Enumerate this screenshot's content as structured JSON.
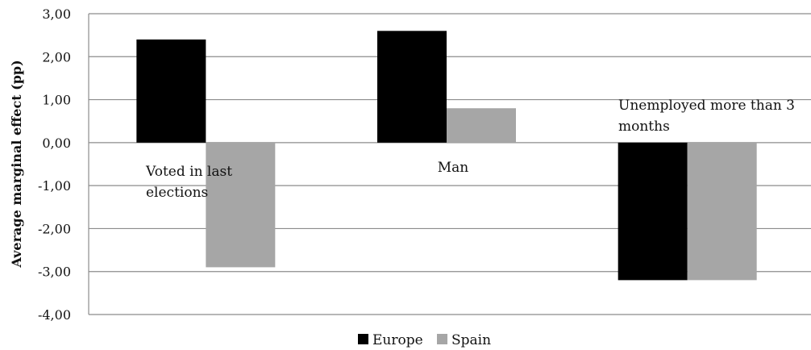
{
  "chart_data": {
    "type": "bar",
    "title": "",
    "xlabel": "",
    "ylabel": "Average marginal effect (pp)",
    "ylim": [
      -4,
      3
    ],
    "yticks": [
      "3,00",
      "2,00",
      "1,00",
      "0,00",
      "-1,00",
      "-2,00",
      "-3,00",
      "-4,00"
    ],
    "categories": [
      "Voted in last elections",
      "Man",
      "Unemployed more than 3 months"
    ],
    "category_label_lines": [
      [
        "Voted in last",
        "elections"
      ],
      [
        "Man"
      ],
      [
        "Unemployed more than 3",
        "months"
      ]
    ],
    "series": [
      {
        "name": "Europe",
        "values": [
          2.4,
          2.6,
          -3.2
        ],
        "color": "#000000"
      },
      {
        "name": "Spain",
        "values": [
          -2.9,
          0.8,
          -3.2
        ],
        "color": "#a6a6a6"
      }
    ],
    "grid": true,
    "gridline_color": "#8c8c8c",
    "legend_position": "bottom"
  }
}
